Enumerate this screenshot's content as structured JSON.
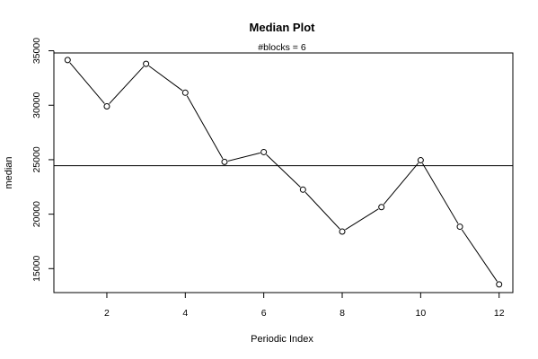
{
  "chart_data": {
    "type": "line",
    "title": "Median Plot",
    "subtitle": "#blocks =  6",
    "xlabel": "Periodic Index",
    "ylabel": "median",
    "xlim": [
      0.65,
      12.35
    ],
    "ylim": [
      12800,
      34800
    ],
    "x_ticks": [
      2,
      4,
      6,
      8,
      10,
      12
    ],
    "y_ticks": [
      15000,
      20000,
      25000,
      30000,
      35000
    ],
    "x": [
      1,
      2,
      3,
      4,
      5,
      6,
      7,
      8,
      9,
      10,
      11,
      12
    ],
    "values": [
      34150,
      29900,
      33800,
      31150,
      24800,
      25700,
      22250,
      18400,
      20650,
      24950,
      18850,
      13550
    ],
    "reference_line": 24450,
    "markers": "open-circle",
    "grid": false
  }
}
